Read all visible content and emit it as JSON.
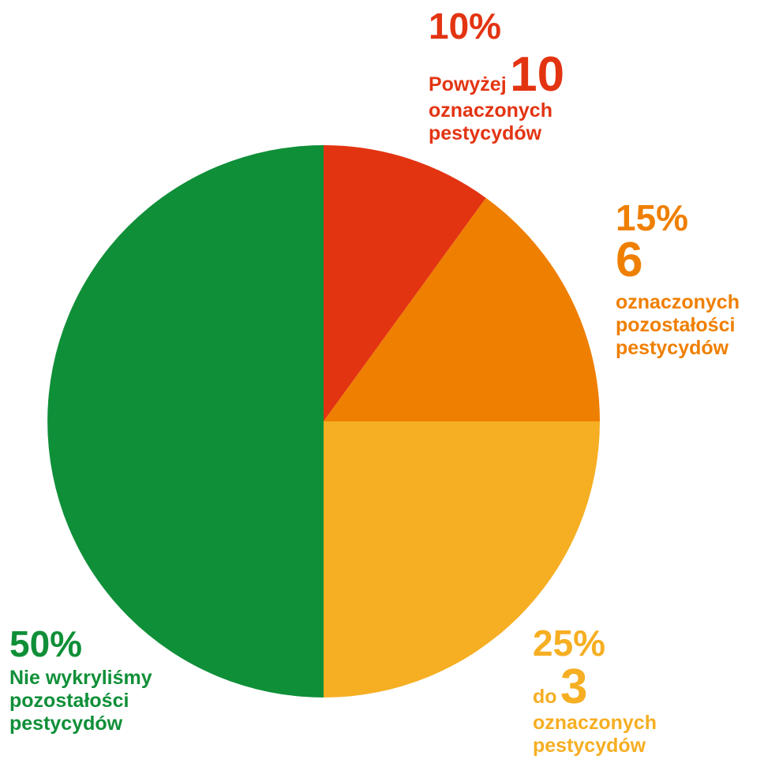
{
  "chart_data": {
    "type": "pie",
    "title": "",
    "slices": [
      {
        "label": "Powyżej 10 oznaczonych pestycydów",
        "value": 10,
        "color": "#e33412"
      },
      {
        "label": "6 oznaczonych pozostałości pestycydów",
        "value": 15,
        "color": "#ef7f00"
      },
      {
        "label": "do 3 oznaczonych pestycydów",
        "value": 25,
        "color": "#f6ae22"
      },
      {
        "label": "Nie wykryliśmy pozostałości pestycydów",
        "value": 50,
        "color": "#0f8f38"
      }
    ]
  },
  "labels": {
    "red": {
      "pct": "10%",
      "pre": "Powyżej",
      "num": "10",
      "line2": "oznaczonych",
      "line3": "pestycydów"
    },
    "orange": {
      "pct": "15%",
      "num": "6",
      "line1": "oznaczonych",
      "line2": "pozostałości",
      "line3": "pestycydów"
    },
    "yellow": {
      "pct": "25%",
      "pre": "do",
      "num": "3",
      "line2": "oznaczonych",
      "line3": "pestycydów"
    },
    "green": {
      "pct": "50%",
      "line1": "Nie wykryliśmy",
      "line2": "pozostałości",
      "line3": "pestycydów"
    }
  }
}
